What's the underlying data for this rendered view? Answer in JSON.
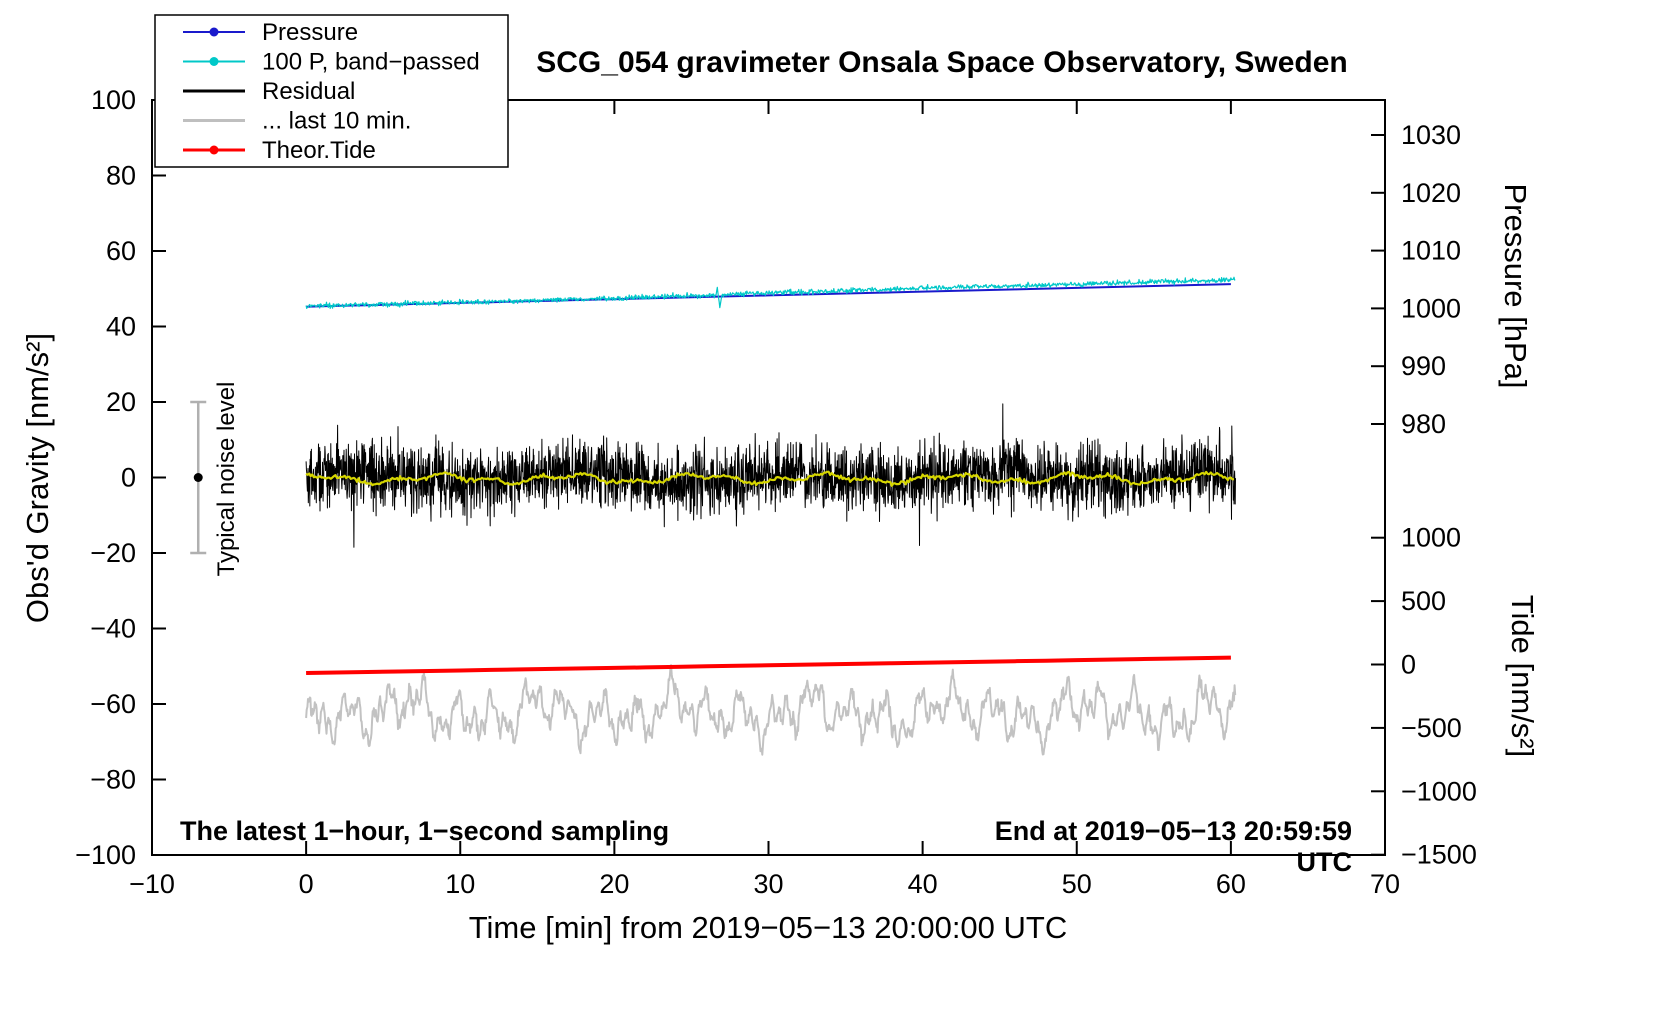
{
  "page": {
    "background": "#ffffff"
  },
  "chart_data": {
    "type": "line",
    "title": "SCG_054 gravimeter Onsala Space Observatory, Sweden",
    "xlabel": "Time [min] from 2019−05−13 20:00:00 UTC",
    "x_axis": {
      "range": [
        -10,
        70
      ],
      "major_ticks": [
        -10,
        0,
        10,
        20,
        30,
        40,
        50,
        60,
        70
      ]
    },
    "gravity_axis": {
      "label": "Obs'd Gravity [nm/s²]",
      "range": [
        -100,
        100
      ],
      "major_ticks": [
        100,
        80,
        60,
        40,
        20,
        0,
        -20,
        -40,
        -60,
        -80,
        -100
      ]
    },
    "pressure_axis": {
      "label": "Pressure [hPa]",
      "major_ticks": [
        1030,
        1020,
        1010,
        1000,
        990,
        980
      ]
    },
    "tide_axis": {
      "label": "Tide [nm/s²]",
      "major_ticks": [
        1000,
        500,
        0,
        -500,
        -1000,
        -1500
      ]
    },
    "x_data_range": [
      0,
      60.3
    ],
    "legend": [
      {
        "label": "Pressure",
        "color": "#1a1acc",
        "marker": true,
        "width": 2
      },
      {
        "label": "100 P, band−passed",
        "color": "#00c8c8",
        "marker": true,
        "width": 2
      },
      {
        "label": "Residual",
        "color": "#000000",
        "marker": false,
        "width": 3
      },
      {
        "label": "... last 10 min.",
        "color": "#bfbfbf",
        "marker": false,
        "width": 3
      },
      {
        "label": "Theor.Tide",
        "color": "#ff0000",
        "marker": true,
        "width": 3
      }
    ],
    "series": [
      {
        "id": "pressure",
        "name": "Pressure",
        "axis": "pressure",
        "color": "#1a1acc",
        "width": 2,
        "trend_t": [
          0,
          60
        ],
        "trend_v": [
          1000.3,
          1004.2
        ]
      },
      {
        "id": "pressure-bandpassed",
        "name": "100 P, band−passed",
        "axis": "gravity",
        "color": "#00c8c8",
        "width": 1.2,
        "noise_sd": 0.33,
        "trend_t": [
          0,
          5,
          10,
          15,
          20,
          25,
          30,
          35,
          40,
          45,
          50,
          55,
          60
        ],
        "trend_v": [
          45.4,
          45.9,
          46.4,
          46.9,
          47.5,
          48.1,
          48.9,
          49.5,
          50.1,
          50.7,
          51.2,
          51.8,
          52.4
        ],
        "glitch_times": [
          26.8,
          43.5
        ]
      },
      {
        "id": "residual",
        "name": "Residual",
        "axis": "gravity",
        "color": "#000000",
        "width": 1,
        "center": 0,
        "noise_sd": 4.3,
        "extremes": [
          [
            3.1,
            -18.5
          ],
          [
            39.8,
            -18.0
          ],
          [
            45.2,
            19.5
          ]
        ]
      },
      {
        "id": "residual-smooth",
        "name": "Residual smoothed",
        "axis": "gravity",
        "color": "#d6d600",
        "width": 2.2,
        "center": -0.3,
        "noise_sd": 0.28,
        "wiggle_amp": 1.3
      },
      {
        "id": "last-10-min",
        "name": "... last 10 min.",
        "axis": "gravity",
        "color": "#c2c2c2",
        "width": 2,
        "center": -62.3,
        "noise_sd": 0.9,
        "wiggle_amp": 12
      },
      {
        "id": "theor-tide",
        "name": "Theor.Tide",
        "axis": "gravity",
        "color": "#ff0000",
        "width": 4,
        "trend_t": [
          0,
          60
        ],
        "trend_v": [
          -51.8,
          -47.7
        ]
      }
    ],
    "noise_marker": {
      "label": "Typical noise level",
      "t": -7,
      "center": 0,
      "half_range": 20,
      "color": "#b0b0b0"
    },
    "annotations": {
      "bottom_left": "The latest 1−hour, 1−second sampling",
      "bottom_right": "End at 2019−05−13 20:59:59 UTC"
    }
  }
}
